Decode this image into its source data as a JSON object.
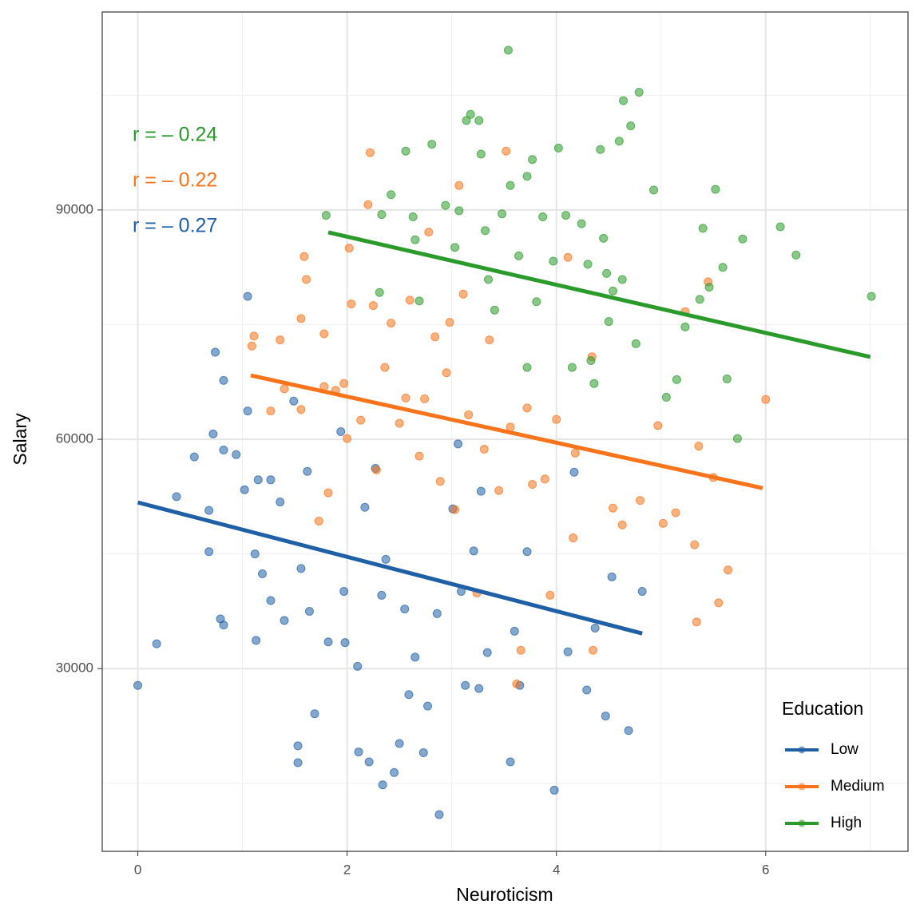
{
  "chart_data": {
    "type": "scatter",
    "x_label": "Neuroticism",
    "y_label": "Salary",
    "xlim": [
      -0.34,
      7.36
    ],
    "ylim": [
      6100,
      115900
    ],
    "xticks": [
      0,
      2,
      4,
      6
    ],
    "yticks": [
      30000,
      60000,
      90000
    ],
    "xminor": [
      1,
      3,
      5,
      7
    ],
    "yminor": [
      15000,
      45000,
      75000,
      105000
    ],
    "grid": true,
    "legend_title": "Education",
    "legend_position": "bottom-right",
    "annotations": [
      {
        "text": "r = – 0.24",
        "color": "#2a9a2a"
      },
      {
        "text": "r = – 0.22",
        "color": "#f8731a"
      },
      {
        "text": "r = – 0.27",
        "color": "#1f5fa6"
      }
    ],
    "series": [
      {
        "name": "Low",
        "color": "#1f5fa6",
        "x": [
          0,
          0.18,
          0.37,
          0.54,
          0.68,
          0.68,
          0.74,
          0.72,
          0.82,
          0.79,
          0.82,
          0.82,
          0.94,
          1.02,
          1.05,
          1.05,
          1.12,
          1.13,
          1.15,
          1.19,
          1.27,
          1.27,
          1.36,
          1.4,
          1.49,
          1.53,
          1.53,
          1.56,
          1.62,
          1.64,
          1.69,
          1.82,
          1.94,
          1.97,
          1.98,
          2.1,
          2.11,
          2.17,
          2.21,
          2.27,
          2.33,
          2.34,
          2.37,
          2.45,
          2.5,
          2.55,
          2.59,
          2.65,
          2.73,
          2.77,
          2.86,
          2.88,
          3.01,
          3.06,
          3.09,
          3.13,
          3.21,
          3.26,
          3.28,
          3.34,
          3.56,
          3.6,
          3.65,
          3.72,
          3.98,
          4.11,
          4.17,
          4.29,
          4.37,
          4.47,
          4.53,
          4.69,
          4.82
        ],
        "values": [
          27800,
          33250,
          52500,
          57700,
          50700,
          45300,
          71400,
          60700,
          67700,
          36500,
          35700,
          58600,
          58000,
          53400,
          78700,
          63700,
          45000,
          33700,
          54700,
          42400,
          54700,
          38900,
          51800,
          36300,
          65000,
          19900,
          17700,
          43100,
          55800,
          37500,
          24100,
          33500,
          61000,
          40100,
          33400,
          30300,
          19100,
          51100,
          17800,
          56200,
          39600,
          14800,
          44300,
          16400,
          20200,
          37800,
          26600,
          31500,
          19000,
          25100,
          37200,
          10900,
          50900,
          59400,
          40100,
          27800,
          45400,
          27400,
          53200,
          32100,
          17800,
          34900,
          27800,
          45300,
          14100,
          32200,
          55700,
          27200,
          35300,
          23800,
          42000,
          21900,
          40100
        ],
        "fit": {
          "x": [
            0,
            4.82
          ],
          "values": [
            51740,
            34600
          ]
        }
      },
      {
        "name": "Medium",
        "color": "#f8731a",
        "x": [
          1.09,
          1.11,
          1.27,
          1.36,
          1.4,
          1.56,
          1.56,
          1.59,
          1.61,
          1.73,
          1.78,
          1.78,
          1.82,
          1.89,
          1.97,
          2.0,
          2.02,
          2.04,
          2.13,
          2.2,
          2.22,
          2.25,
          2.28,
          2.36,
          2.42,
          2.5,
          2.56,
          2.6,
          2.69,
          2.74,
          2.78,
          2.84,
          2.89,
          2.95,
          2.98,
          3.03,
          3.07,
          3.11,
          3.16,
          3.24,
          3.31,
          3.36,
          3.45,
          3.52,
          3.56,
          3.62,
          3.66,
          3.72,
          3.77,
          3.89,
          3.94,
          4.0,
          4.11,
          4.16,
          4.18,
          4.34,
          4.35,
          4.54,
          4.63,
          4.8,
          4.97,
          5.02,
          5.14,
          5.23,
          5.32,
          5.34,
          5.36,
          5.45,
          5.5,
          5.55,
          5.64,
          6.0
        ],
        "values": [
          72200,
          73500,
          63700,
          73000,
          66600,
          63900,
          75800,
          83900,
          80900,
          49300,
          73800,
          66900,
          53000,
          66400,
          67300,
          60100,
          85000,
          77700,
          62500,
          90700,
          97500,
          77500,
          56000,
          69400,
          75200,
          62100,
          65400,
          78200,
          57800,
          65300,
          87100,
          73400,
          54500,
          68700,
          75300,
          50800,
          93200,
          79000,
          63200,
          39900,
          58700,
          73000,
          53300,
          97700,
          61600,
          28000,
          32400,
          64100,
          54100,
          54800,
          39600,
          62600,
          83800,
          47100,
          58200,
          70800,
          32400,
          51000,
          48800,
          52000,
          61800,
          49000,
          50400,
          76700,
          46200,
          36100,
          59100,
          80600,
          55000,
          38600,
          42900,
          65200
        ],
        "fit": {
          "x": [
            1.08,
            5.97
          ],
          "values": [
            68360,
            53620
          ]
        }
      },
      {
        "name": "High",
        "color": "#2a9a2a",
        "x": [
          1.8,
          2.31,
          2.33,
          2.42,
          2.56,
          2.63,
          2.65,
          2.69,
          2.81,
          2.94,
          3.03,
          3.07,
          3.14,
          3.18,
          3.26,
          3.28,
          3.32,
          3.35,
          3.41,
          3.48,
          3.54,
          3.56,
          3.64,
          3.72,
          3.77,
          3.81,
          3.87,
          3.97,
          4.02,
          4.09,
          4.15,
          4.24,
          4.3,
          4.36,
          4.42,
          4.45,
          4.48,
          4.5,
          4.54,
          4.6,
          4.64,
          4.71,
          4.76,
          4.79,
          4.93,
          5.05,
          5.15,
          5.23,
          5.37,
          5.4,
          5.46,
          5.52,
          5.59,
          5.63,
          5.73,
          5.78,
          6.14,
          6.29,
          7.01,
          4.63,
          4.33,
          3.72
        ],
        "values": [
          89300,
          79200,
          89400,
          92000,
          97700,
          89100,
          86100,
          78100,
          98600,
          90600,
          85100,
          89900,
          101700,
          102500,
          101700,
          97300,
          87300,
          80900,
          76900,
          89500,
          110900,
          93200,
          84000,
          94400,
          96600,
          78000,
          89100,
          83300,
          98100,
          89300,
          69400,
          88200,
          82900,
          67300,
          97900,
          86300,
          81700,
          75400,
          79400,
          99000,
          104300,
          101000,
          72500,
          105400,
          92600,
          65500,
          67800,
          74700,
          78300,
          87600,
          79900,
          92700,
          82500,
          67900,
          60100,
          86200,
          87800,
          84100,
          78700,
          80900,
          70300,
          69400
        ],
        "fit": {
          "x": [
            1.82,
            7.0
          ],
          "values": [
            87070,
            70770
          ]
        }
      }
    ]
  }
}
